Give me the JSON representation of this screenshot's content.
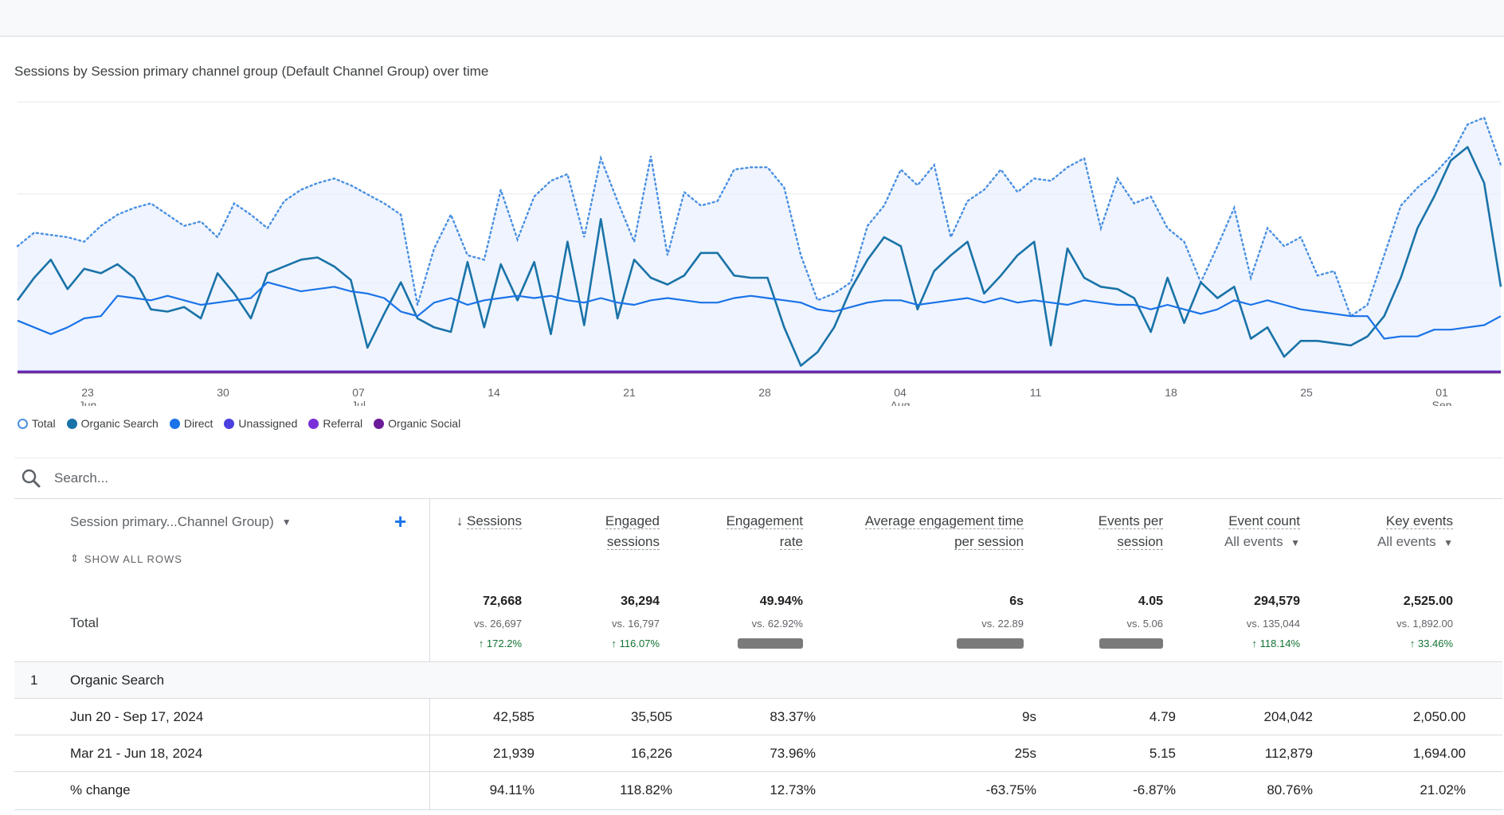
{
  "chart": {
    "title": "Sessions by Session primary channel group (Default Channel Group) over time",
    "x_ticks": [
      {
        "day": "23",
        "month": "Jun"
      },
      {
        "day": "30",
        "month": ""
      },
      {
        "day": "07",
        "month": "Jul"
      },
      {
        "day": "14",
        "month": ""
      },
      {
        "day": "21",
        "month": ""
      },
      {
        "day": "28",
        "month": ""
      },
      {
        "day": "04",
        "month": "Aug"
      },
      {
        "day": "11",
        "month": ""
      },
      {
        "day": "18",
        "month": ""
      },
      {
        "day": "25",
        "month": ""
      },
      {
        "day": "01",
        "month": "Sep"
      }
    ],
    "legend": [
      {
        "name": "Total",
        "color": "#4a90e2",
        "hollow": true
      },
      {
        "name": "Organic Search",
        "color": "#1a73a8"
      },
      {
        "name": "Direct",
        "color": "#1a73e8"
      },
      {
        "name": "Unassigned",
        "color": "#4b3fe0"
      },
      {
        "name": "Referral",
        "color": "#7b2fd6"
      },
      {
        "name": "Organic Social",
        "color": "#6a1b9a"
      }
    ]
  },
  "chart_data": {
    "type": "line",
    "title": "Sessions by Session primary channel group (Default Channel Group) over time",
    "x_start": "Jun 20, 2024",
    "x_end": "Sep 17, 2024",
    "ylim": [
      0,
      1200
    ],
    "grid": true,
    "legend_position": "bottom-left",
    "series": [
      {
        "name": "Total",
        "color": "#4a90e2",
        "style": "dotted-area",
        "values": [
          560,
          620,
          610,
          600,
          580,
          650,
          700,
          730,
          750,
          700,
          650,
          670,
          600,
          750,
          700,
          640,
          760,
          810,
          840,
          860,
          830,
          790,
          750,
          700,
          300,
          550,
          700,
          520,
          500,
          810,
          590,
          780,
          850,
          880,
          600,
          950,
          760,
          580,
          960,
          520,
          800,
          740,
          760,
          900,
          910,
          910,
          820,
          520,
          320,
          350,
          400,
          650,
          740,
          900,
          830,
          920,
          600,
          760,
          810,
          900,
          800,
          860,
          850,
          910,
          950,
          640,
          860,
          750,
          780,
          640,
          580,
          400,
          560,
          730,
          420,
          640,
          560,
          600,
          430,
          450,
          250,
          300,
          520,
          740,
          820,
          880,
          960,
          1100,
          1130,
          920
        ]
      },
      {
        "name": "Organic Search",
        "color": "#1a73a8",
        "style": "solid",
        "values": [
          320,
          420,
          500,
          370,
          460,
          440,
          480,
          420,
          280,
          270,
          290,
          240,
          440,
          350,
          240,
          440,
          470,
          500,
          510,
          470,
          410,
          110,
          260,
          400,
          240,
          200,
          180,
          490,
          200,
          480,
          320,
          490,
          170,
          580,
          210,
          680,
          240,
          500,
          420,
          390,
          430,
          530,
          530,
          430,
          420,
          420,
          200,
          30,
          90,
          200,
          370,
          500,
          600,
          560,
          280,
          450,
          520,
          580,
          350,
          430,
          520,
          580,
          120,
          550,
          420,
          380,
          370,
          330,
          180,
          420,
          220,
          400,
          330,
          380,
          150,
          200,
          70,
          140,
          140,
          130,
          120,
          160,
          250,
          420,
          640,
          780,
          940,
          1000,
          840,
          380
        ]
      },
      {
        "name": "Direct",
        "color": "#1a73e8",
        "style": "solid",
        "values": [
          230,
          200,
          170,
          200,
          240,
          250,
          340,
          330,
          320,
          340,
          320,
          300,
          310,
          320,
          330,
          400,
          380,
          360,
          370,
          380,
          360,
          350,
          330,
          270,
          250,
          310,
          330,
          300,
          320,
          330,
          340,
          330,
          340,
          320,
          310,
          330,
          310,
          300,
          320,
          330,
          320,
          310,
          310,
          330,
          340,
          330,
          320,
          310,
          280,
          270,
          290,
          310,
          320,
          320,
          300,
          310,
          320,
          330,
          310,
          330,
          310,
          320,
          310,
          300,
          320,
          310,
          300,
          300,
          280,
          300,
          280,
          260,
          280,
          320,
          300,
          320,
          300,
          280,
          270,
          260,
          250,
          250,
          150,
          160,
          160,
          190,
          190,
          200,
          210,
          250
        ]
      },
      {
        "name": "Unassigned",
        "color": "#4b3fe0",
        "style": "solid",
        "values": [
          5,
          5,
          5,
          5,
          5,
          5,
          5,
          5,
          5,
          5,
          5,
          5,
          5,
          5,
          5,
          5,
          5,
          5,
          5,
          5,
          5,
          5,
          5,
          5,
          5,
          5,
          5,
          5,
          5,
          5,
          5,
          5,
          5,
          5,
          5,
          5,
          5,
          5,
          5,
          5,
          5,
          5,
          5,
          5,
          5,
          5,
          5,
          5,
          5,
          5,
          5,
          5,
          5,
          5,
          5,
          5,
          5,
          5,
          5,
          5,
          5,
          5,
          5,
          5,
          5,
          5,
          5,
          5,
          5,
          5,
          5,
          5,
          5,
          5,
          5,
          5,
          5,
          5,
          5,
          5,
          5,
          5,
          5,
          5,
          5,
          5,
          5,
          5,
          5,
          5
        ]
      },
      {
        "name": "Referral",
        "color": "#7b2fd6",
        "style": "solid",
        "values": [
          3,
          3,
          3,
          3,
          3,
          3,
          3,
          3,
          3,
          3,
          3,
          3,
          3,
          3,
          3,
          3,
          3,
          3,
          3,
          3,
          3,
          3,
          3,
          3,
          3,
          3,
          3,
          3,
          3,
          3,
          3,
          3,
          3,
          3,
          3,
          3,
          3,
          3,
          3,
          3,
          3,
          3,
          3,
          3,
          3,
          3,
          3,
          3,
          3,
          3,
          3,
          3,
          3,
          3,
          3,
          3,
          3,
          3,
          3,
          3,
          3,
          3,
          3,
          3,
          3,
          3,
          3,
          3,
          3,
          3,
          3,
          3,
          3,
          3,
          3,
          3,
          3,
          3,
          3,
          3,
          3,
          3,
          3,
          3,
          3,
          3,
          3,
          3,
          3,
          3
        ]
      },
      {
        "name": "Organic Social",
        "color": "#6a1b9a",
        "style": "solid",
        "values": [
          1,
          1,
          1,
          1,
          1,
          1,
          1,
          1,
          1,
          1,
          1,
          1,
          1,
          1,
          1,
          1,
          1,
          1,
          1,
          1,
          1,
          1,
          1,
          1,
          1,
          1,
          1,
          1,
          1,
          1,
          1,
          1,
          1,
          1,
          1,
          1,
          1,
          1,
          1,
          1,
          1,
          1,
          1,
          1,
          1,
          1,
          1,
          1,
          1,
          1,
          1,
          1,
          1,
          1,
          1,
          1,
          1,
          1,
          1,
          1,
          1,
          1,
          1,
          1,
          1,
          1,
          1,
          1,
          1,
          1,
          1,
          1,
          1,
          1,
          1,
          1,
          1,
          1,
          1,
          1,
          1,
          1,
          1,
          1,
          1,
          1,
          1,
          1,
          1,
          1
        ]
      }
    ]
  },
  "search": {
    "placeholder": "Search..."
  },
  "table": {
    "dimension_header": "Session primary...Channel Group)",
    "show_all_rows": "SHOW ALL ROWS",
    "metrics": [
      {
        "line1": "Sessions",
        "line2": "",
        "sort_arrow": "↓"
      },
      {
        "line1": "Engaged",
        "line2": "sessions"
      },
      {
        "line1": "Engagement",
        "line2": "rate"
      },
      {
        "line1": "Average engagement time",
        "line2": "per session"
      },
      {
        "line1": "Events per",
        "line2": "session"
      },
      {
        "line1": "Event count",
        "line2": "All events"
      },
      {
        "line1": "Key events",
        "line2": "All events"
      }
    ],
    "total": {
      "label": "Total",
      "values": [
        "72,668",
        "36,294",
        "49.94%",
        "6s",
        "4.05",
        "294,579",
        "2,525.00"
      ],
      "compare": [
        "vs. 26,697",
        "vs. 16,797",
        "vs. 62.92%",
        "vs. 22.89",
        "vs. 5.06",
        "vs. 135,044",
        "vs. 1,892.00"
      ],
      "pct": [
        "↑ 172.2%",
        "↑ 116.07%",
        "",
        "",
        "",
        "↑ 118.14%",
        "↑ 33.46%"
      ]
    },
    "rows": [
      {
        "index": "1",
        "label": "Organic Search",
        "values": [
          "",
          "",
          "",
          "",
          "",
          "",
          ""
        ]
      },
      {
        "index": "",
        "label": "Jun 20 - Sep 17, 2024",
        "values": [
          "42,585",
          "35,505",
          "83.37%",
          "9s",
          "4.79",
          "204,042",
          "2,050.00"
        ]
      },
      {
        "index": "",
        "label": "Mar 21 - Jun 18, 2024",
        "values": [
          "21,939",
          "16,226",
          "73.96%",
          "25s",
          "5.15",
          "112,879",
          "1,694.00"
        ]
      },
      {
        "index": "",
        "label": "% change",
        "values": [
          "94.11%",
          "118.82%",
          "12.73%",
          "-63.75%",
          "-6.87%",
          "80.76%",
          "21.02%"
        ]
      }
    ]
  }
}
